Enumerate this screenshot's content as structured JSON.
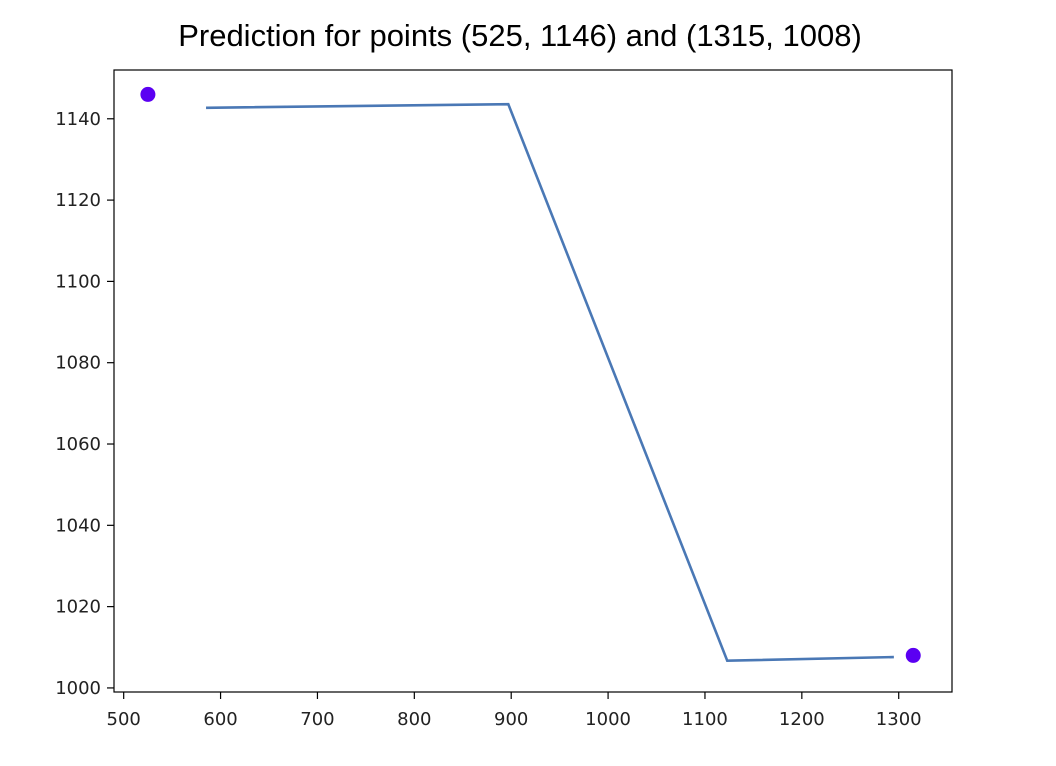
{
  "chart_data": {
    "type": "line",
    "title": "Prediction for points (525, 1146) and (1315, 1008)",
    "xlabel": "",
    "ylabel": "",
    "xlim": [
      490,
      1355
    ],
    "ylim": [
      999,
      1152
    ],
    "x_ticks": [
      500,
      600,
      700,
      800,
      900,
      1000,
      1100,
      1200,
      1300
    ],
    "y_ticks": [
      1000,
      1020,
      1040,
      1060,
      1080,
      1100,
      1120,
      1140
    ],
    "grid": false,
    "series": [
      {
        "kind": "line",
        "color": "#4a78b5",
        "x": [
          585,
          897,
          1123,
          1295
        ],
        "y": [
          1142.7,
          1143.6,
          1006.7,
          1007.6
        ]
      },
      {
        "kind": "scatter",
        "color": "#5b00f2",
        "x": [
          525,
          1315
        ],
        "y": [
          1146,
          1008
        ]
      }
    ]
  }
}
